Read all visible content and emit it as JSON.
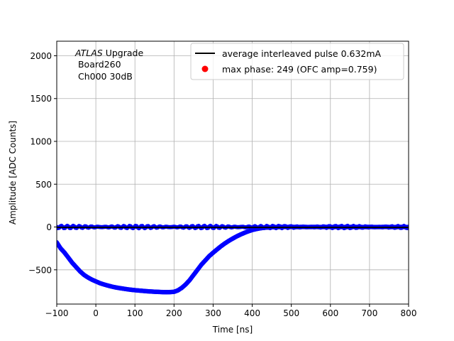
{
  "chart_data": {
    "type": "scatter",
    "title": "",
    "xlabel": "Time [ns]",
    "ylabel": "Amplitude [ADC Counts]",
    "xlim": [
      -100,
      800
    ],
    "ylim": [
      -900,
      2170
    ],
    "xticks": [
      -100,
      0,
      100,
      200,
      300,
      400,
      500,
      600,
      700,
      800
    ],
    "yticks": [
      -500,
      0,
      500,
      1000,
      1500,
      2000
    ],
    "grid": true,
    "legend_position": "top-right",
    "annotation": {
      "prefix_italic": "ATLAS",
      "prefix_rest": " Upgrade",
      "line2": " Board260",
      "line3": " Ch000 30dB"
    },
    "legend": [
      {
        "label": "average interleaved pulse 0.632mA",
        "marker": "line",
        "color": "#000000"
      },
      {
        "label": "max phase: 249 (OFC amp=0.759)",
        "marker": "dot",
        "color": "#ff0000"
      }
    ],
    "series": [
      {
        "role": "pulse-scatter",
        "color": "#0000ff",
        "x": [
          -100,
          -90,
          -80,
          -70,
          -60,
          -50,
          -40,
          -30,
          -20,
          -10,
          0,
          10,
          20,
          30,
          40,
          50,
          60,
          70,
          80,
          90,
          100,
          110,
          120,
          130,
          140,
          150,
          160,
          170,
          180,
          190,
          200,
          210,
          220,
          230,
          240,
          250,
          260,
          270,
          280,
          290,
          300,
          310,
          320,
          330,
          340,
          350,
          360,
          370,
          380,
          390,
          400,
          410,
          420,
          430,
          440,
          450,
          460,
          470,
          480,
          490,
          500,
          510,
          520,
          530,
          540,
          550,
          560,
          570,
          580,
          590,
          600,
          610,
          620,
          630,
          640,
          650,
          660,
          670,
          680,
          690,
          700,
          710,
          720,
          730,
          740,
          750,
          760,
          770,
          780,
          790,
          800
        ],
        "y": [
          -180,
          -250,
          -300,
          -360,
          -420,
          -470,
          -520,
          -560,
          -590,
          -615,
          -635,
          -655,
          -670,
          -683,
          -695,
          -705,
          -713,
          -720,
          -727,
          -733,
          -738,
          -742,
          -746,
          -750,
          -753,
          -756,
          -758,
          -760,
          -761,
          -760,
          -757,
          -740,
          -710,
          -670,
          -620,
          -560,
          -500,
          -440,
          -390,
          -340,
          -300,
          -262,
          -225,
          -192,
          -162,
          -135,
          -110,
          -88,
          -68,
          -50,
          -35,
          -24,
          -15,
          -9,
          -5,
          -2,
          -1,
          0,
          1,
          0,
          1,
          0,
          0,
          1,
          0,
          0,
          1,
          0,
          0,
          1,
          0,
          0,
          1,
          0,
          0,
          0,
          1,
          0,
          0,
          0,
          1,
          0,
          0,
          0,
          1,
          0,
          0,
          0,
          1,
          0,
          0
        ]
      },
      {
        "role": "baseline-scatter",
        "color": "#0000ff",
        "x": [
          -100,
          800
        ],
        "y": [
          0,
          0
        ]
      },
      {
        "role": "average-line",
        "color": "#000000",
        "x": [
          -100,
          800
        ],
        "y": [
          -5,
          -5
        ]
      }
    ]
  }
}
